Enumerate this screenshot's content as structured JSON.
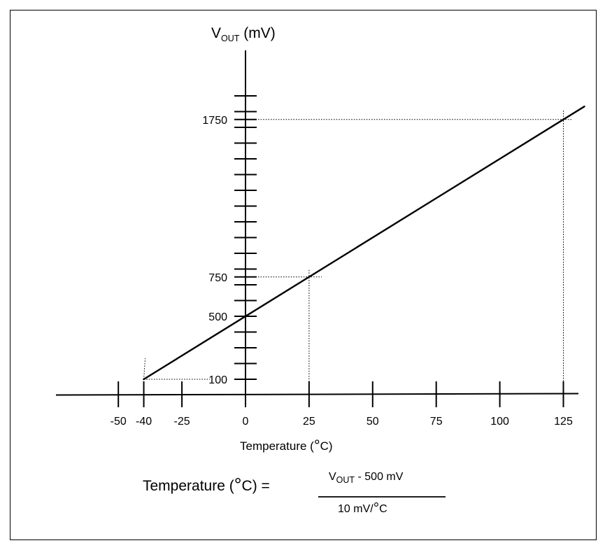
{
  "chart_data": {
    "type": "line",
    "series": [
      {
        "x": [
          -40,
          0,
          25,
          125
        ],
        "y": [
          100,
          500,
          750,
          1750
        ]
      }
    ],
    "xlim": [
      -70,
      130
    ],
    "ylim": [
      0,
      2000
    ],
    "x_ticks": [
      -50,
      -40,
      -25,
      0,
      25,
      50,
      75,
      100,
      125
    ],
    "x_tick_labels": [
      "-50",
      "-40",
      "-25",
      "0",
      "25",
      "50",
      "75",
      "100",
      "125"
    ],
    "y_tick_values": [
      100,
      200,
      300,
      400,
      500,
      600,
      700,
      750,
      800,
      900,
      1000,
      1100,
      1200,
      1300,
      1400,
      1500,
      1600,
      1700,
      1750,
      1800,
      1900
    ],
    "y_labeled": [
      {
        "value": 100,
        "label": "100"
      },
      {
        "value": 500,
        "label": "500"
      },
      {
        "value": 750,
        "label": "750"
      },
      {
        "value": 1750,
        "label": "1750"
      }
    ],
    "ylabel": {
      "main": "V",
      "sub": "OUT",
      "unit": " (mV)"
    },
    "xlabel": {
      "pre": "Temperature (",
      "deg": "°",
      "post": "C)"
    },
    "reference_points": [
      {
        "x": -40,
        "y": 100
      },
      {
        "x": 25,
        "y": 750
      },
      {
        "x": 125,
        "y": 1750
      }
    ],
    "grid": false
  },
  "formula": {
    "lhs_pre": "Temperature (",
    "lhs_deg": "°",
    "lhs_post": "C) =",
    "num_main": "V",
    "num_sub": "OUT",
    "num_rest": " - 500 mV",
    "den_pre": "10 mV/",
    "den_deg": "°",
    "den_post": "C"
  }
}
